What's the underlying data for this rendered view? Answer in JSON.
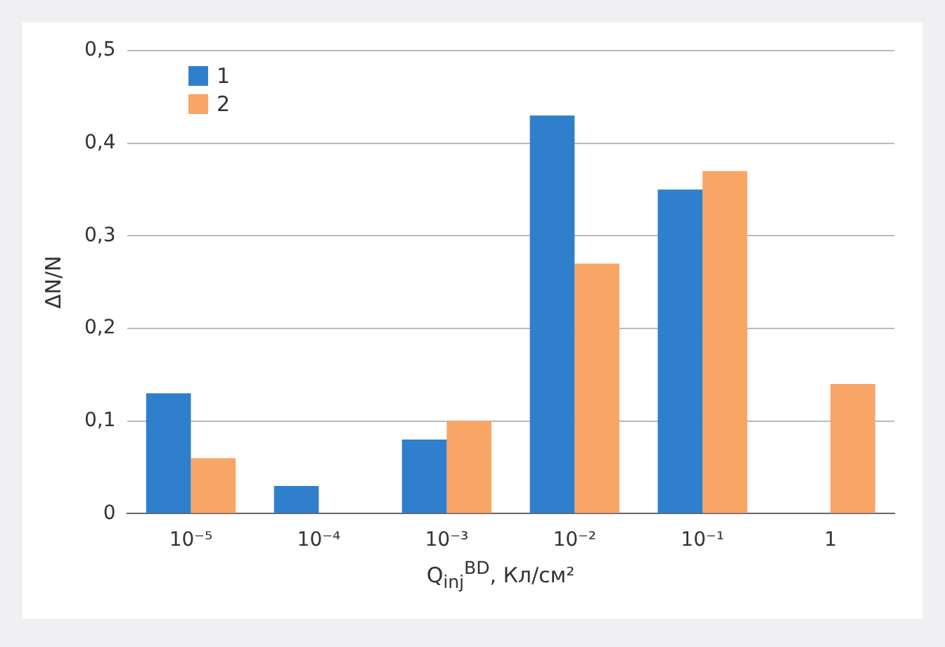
{
  "chart_data": {
    "type": "bar",
    "xlabel": "Q$_{inj}$$^{BD}$, Кл/см²",
    "ylabel": "ΔN/N",
    "categories": [
      "10⁻⁵",
      "10⁻⁴",
      "10⁻³",
      "10⁻²",
      "10⁻¹",
      "1"
    ],
    "series": [
      {
        "name": "1",
        "color": "#2f7fcc",
        "values": [
          0.13,
          0.03,
          0.08,
          0.43,
          0.35,
          null
        ]
      },
      {
        "name": "2",
        "color": "#f8a566",
        "values": [
          0.06,
          null,
          0.1,
          0.27,
          0.37,
          0.14
        ]
      }
    ],
    "ylim": [
      0,
      0.5
    ],
    "yticks": [
      0,
      {
        "value": 0.1,
        "label": "0,1"
      },
      {
        "value": 0.2,
        "label": "0,2"
      },
      {
        "value": 0.3,
        "label": "0,3"
      },
      {
        "value": 0.4,
        "label": "0,4"
      },
      {
        "value": 0.5,
        "label": "0,5"
      }
    ],
    "grid": "y",
    "legend": "top left"
  }
}
